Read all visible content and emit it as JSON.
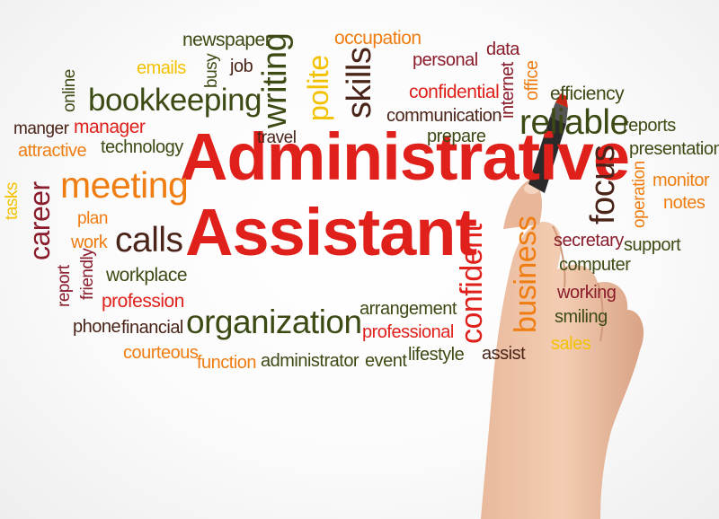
{
  "colors": {
    "red": "#e0201a",
    "orange": "#f07d12",
    "dark_red": "#8a1c2c",
    "olive": "#3c4a14",
    "yellow": "#f2c200",
    "brown": "#4a2418"
  },
  "title": {
    "line1": "Administrative",
    "line2": "Assistant"
  },
  "words": {
    "newspaper": "newspaper",
    "occupation": "occupation",
    "emails": "emails",
    "busy": "busy",
    "job": "job",
    "writing": "writing",
    "polite": "polite",
    "skills": "skills",
    "personal": "personal",
    "data": "data",
    "internet": "internet",
    "office": "office",
    "online": "online",
    "bookkeeping": "bookkeeping",
    "confidential": "confidential",
    "efficiency": "efficiency",
    "communication": "communication",
    "manger": "manger",
    "manager": "manager",
    "reliable": "reliable",
    "reports": "reports",
    "attractive": "attractive",
    "technology": "technology",
    "travel": "travel",
    "prepare": "prepare",
    "presentation": "presentation",
    "career": "career",
    "meeting": "meeting",
    "focus": "focus",
    "monitor": "monitor",
    "operation": "operation",
    "notes": "notes",
    "tasks": "tasks",
    "plan": "plan",
    "calls": "calls",
    "work": "work",
    "friendly": "friendly",
    "confident": "confident",
    "business": "business",
    "secretary": "secretary",
    "support": "support",
    "computer": "computer",
    "workplace": "workplace",
    "report": "report",
    "profession": "profession",
    "working": "working",
    "organization": "organization",
    "arrangement": "arrangement",
    "phone": "phone",
    "financial": "financial",
    "smiling": "smiling",
    "professional": "professional",
    "sales": "sales",
    "courteous": "courteous",
    "function": "function",
    "administrator": "administrator",
    "event": "event",
    "lifestyle": "lifestyle",
    "assist": "assist"
  }
}
